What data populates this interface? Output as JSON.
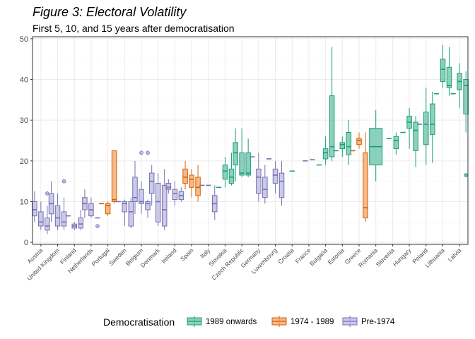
{
  "chart_data": {
    "type": "boxplot",
    "title": "Figure 3: Electoral Volatility",
    "subtitle": "First 5, 10, and 15 years after democratisation",
    "xlabel": "",
    "ylabel": "",
    "ylim": [
      -0.5,
      50.5
    ],
    "yticks": [
      0,
      10,
      20,
      30,
      40,
      50
    ],
    "grid": true,
    "legend": {
      "title": "Democratisation",
      "position": "bottom",
      "entries": [
        {
          "label": "1989 onwards",
          "fill": "#66c2a5",
          "stroke": "#1b9e77"
        },
        {
          "label": "1974 - 1989",
          "fill": "#f4a261",
          "stroke": "#d95f02"
        },
        {
          "label": "Pre-1974",
          "fill": "#bcb8e0",
          "stroke": "#7570b3"
        }
      ]
    },
    "categories": [
      "Austria",
      "United Kingdom",
      "Finland",
      "Netherlands",
      "Portugal",
      "Sweden",
      "Belgium",
      "Denmark",
      "Ireland",
      "Spain",
      "Italy",
      "Slovakia",
      "Czech Republic",
      "Germany",
      "Luxembourg",
      "Croatia",
      "France",
      "Bulgaria",
      "Estonia",
      "Greece",
      "Romania",
      "Slovenia",
      "Hungary",
      "Poland",
      "Lithuania",
      "Latvia"
    ],
    "series": [
      {
        "category": "Austria",
        "group": "Pre-1974",
        "boxes": [
          {
            "min": 5,
            "q1": 6.5,
            "median": 8,
            "q3": 10,
            "max": 12.5,
            "outliers": []
          },
          {
            "min": 3,
            "q1": 4,
            "median": 5,
            "q3": 7.5,
            "max": 10,
            "outliers": []
          },
          {
            "min": 2,
            "q1": 3,
            "median": 4,
            "q3": 6,
            "max": 9,
            "outliers": [
              12
            ]
          }
        ]
      },
      {
        "category": "United Kingdom",
        "group": "Pre-1974",
        "boxes": [
          {
            "min": 5,
            "q1": 7,
            "median": 9.5,
            "q3": 12,
            "max": 15,
            "outliers": []
          },
          {
            "min": 3,
            "q1": 4,
            "median": 6,
            "q3": 9,
            "max": 12,
            "outliers": []
          },
          {
            "min": 3,
            "q1": 4,
            "median": 5,
            "q3": 7.5,
            "max": 11,
            "outliers": [
              15
            ]
          }
        ]
      },
      {
        "category": "Finland",
        "group": "Pre-1974",
        "boxes": [
          {
            "min": 6.5,
            "q1": 6.5,
            "median": 6.5,
            "q3": 6.5,
            "max": 6.5,
            "outliers": []
          },
          {
            "min": 3,
            "q1": 3.5,
            "median": 4,
            "q3": 4.5,
            "max": 5,
            "outliers": []
          },
          {
            "min": 3,
            "q1": 3.5,
            "median": 4.5,
            "q3": 6,
            "max": 8,
            "outliers": []
          }
        ]
      },
      {
        "category": "Netherlands",
        "group": "Pre-1974",
        "boxes": [
          {
            "min": 6,
            "q1": 8,
            "median": 9.5,
            "q3": 11,
            "max": 13,
            "outliers": []
          },
          {
            "min": 6,
            "q1": 6.5,
            "median": 8,
            "q3": 9.5,
            "max": 11,
            "outliers": []
          },
          {
            "min": 6,
            "q1": 6,
            "median": 6,
            "q3": 6,
            "max": 6,
            "outliers": [
              4
            ]
          }
        ]
      },
      {
        "category": "Portugal",
        "group": "1974 - 1989",
        "boxes": [
          {
            "min": 9.5,
            "q1": 9.5,
            "median": 9.5,
            "q3": 9.5,
            "max": 9.5,
            "outliers": []
          },
          {
            "min": 6.5,
            "q1": 7,
            "median": 9,
            "q3": 9.5,
            "max": 10,
            "outliers": []
          },
          {
            "min": 9.5,
            "q1": 10,
            "median": 10.5,
            "q3": 22.5,
            "max": 22.5,
            "outliers": []
          }
        ]
      },
      {
        "category": "Sweden",
        "group": "Pre-1974",
        "boxes": [
          {
            "min": 10,
            "q1": 10,
            "median": 10,
            "q3": 10,
            "max": 10,
            "outliers": []
          },
          {
            "min": 4,
            "q1": 7.5,
            "median": 9.5,
            "q3": 10,
            "max": 10.5,
            "outliers": []
          },
          {
            "min": 3.5,
            "q1": 4,
            "median": 7.5,
            "q3": 10,
            "max": 11,
            "outliers": []
          }
        ]
      },
      {
        "category": "Belgium",
        "group": "Pre-1974",
        "boxes": [
          {
            "min": 7,
            "q1": 10,
            "median": 11,
            "q3": 16,
            "max": 20,
            "outliers": []
          },
          {
            "min": 7,
            "q1": 9.5,
            "median": 10,
            "q3": 13,
            "max": 15,
            "outliers": [
              22
            ]
          },
          {
            "min": 6,
            "q1": 8,
            "median": 9.5,
            "q3": 10,
            "max": 10.5,
            "outliers": [
              22
            ]
          }
        ]
      },
      {
        "category": "Denmark",
        "group": "Pre-1974",
        "boxes": [
          {
            "min": 9,
            "q1": 12,
            "median": 15,
            "q3": 17,
            "max": 19,
            "outliers": []
          },
          {
            "min": 4,
            "q1": 5,
            "median": 10,
            "q3": 14.5,
            "max": 17,
            "outliers": []
          },
          {
            "min": 3,
            "q1": 4,
            "median": 8,
            "q3": 14,
            "max": 18,
            "outliers": []
          }
        ]
      },
      {
        "category": "Ireland",
        "group": "Pre-1974",
        "boxes": [
          {
            "min": 12,
            "q1": 13,
            "median": 13.5,
            "q3": 14.5,
            "max": 15.5,
            "outliers": []
          },
          {
            "min": 9,
            "q1": 10.5,
            "median": 12,
            "q3": 13,
            "max": 15,
            "outliers": []
          },
          {
            "min": 10,
            "q1": 10.5,
            "median": 11.5,
            "q3": 12.5,
            "max": 13.5,
            "outliers": []
          }
        ]
      },
      {
        "category": "Spain",
        "group": "1974 - 1989",
        "boxes": [
          {
            "min": 13,
            "q1": 14.5,
            "median": 16,
            "q3": 18,
            "max": 20,
            "outliers": []
          },
          {
            "min": 11,
            "q1": 13.5,
            "median": 15.5,
            "q3": 16.5,
            "max": 18,
            "outliers": []
          },
          {
            "min": 10,
            "q1": 11.5,
            "median": 13.5,
            "q3": 16,
            "max": 19,
            "outliers": []
          }
        ]
      },
      {
        "category": "Italy",
        "group": "Pre-1974",
        "boxes": [
          {
            "min": 14,
            "q1": 14,
            "median": 14,
            "q3": 14,
            "max": 14,
            "outliers": []
          },
          {
            "min": 14,
            "q1": 14,
            "median": 14,
            "q3": 14,
            "max": 14,
            "outliers": []
          },
          {
            "min": 5.5,
            "q1": 7.5,
            "median": 9.5,
            "q3": 11.5,
            "max": 14,
            "outliers": []
          }
        ]
      },
      {
        "category": "Slovakia",
        "group": "1989 onwards",
        "boxes": [
          {
            "min": 13.5,
            "q1": 13.5,
            "median": 13.5,
            "q3": 13.5,
            "max": 13.5,
            "outliers": []
          },
          {
            "min": 13.5,
            "q1": 15.5,
            "median": 17.5,
            "q3": 19,
            "max": 21,
            "outliers": []
          },
          {
            "min": 14,
            "q1": 14.5,
            "median": 16,
            "q3": 18,
            "max": 22,
            "outliers": []
          }
        ]
      },
      {
        "category": "Czech Republic",
        "group": "1989 onwards",
        "boxes": [
          {
            "min": 15,
            "q1": 19,
            "median": 22,
            "q3": 24.5,
            "max": 28,
            "outliers": []
          },
          {
            "min": 16,
            "q1": 16.5,
            "median": 17,
            "q3": 22,
            "max": 28,
            "outliers": []
          },
          {
            "min": 16,
            "q1": 16.5,
            "median": 17,
            "q3": 22,
            "max": 25.5,
            "outliers": []
          }
        ]
      },
      {
        "category": "Germany",
        "group": "Pre-1974",
        "boxes": [
          {
            "min": 21,
            "q1": 21,
            "median": 21,
            "q3": 21,
            "max": 21,
            "outliers": []
          },
          {
            "min": 10,
            "q1": 12,
            "median": 16,
            "q3": 18,
            "max": 22,
            "outliers": []
          },
          {
            "min": 9.5,
            "q1": 11,
            "median": 13,
            "q3": 16,
            "max": 19,
            "outliers": []
          }
        ]
      },
      {
        "category": "Luxembourg",
        "group": "Pre-1974",
        "boxes": [
          {
            "min": 20.5,
            "q1": 20.5,
            "median": 20.5,
            "q3": 20.5,
            "max": 20.5,
            "outliers": []
          },
          {
            "min": 12,
            "q1": 14.5,
            "median": 16.5,
            "q3": 18,
            "max": 20,
            "outliers": []
          },
          {
            "min": 9,
            "q1": 11,
            "median": 15,
            "q3": 17,
            "max": 20,
            "outliers": []
          }
        ]
      },
      {
        "category": "Croatia",
        "group": "1989 onwards",
        "boxes": [
          {
            "min": 17.5,
            "q1": 17.5,
            "median": 17.5,
            "q3": 17.5,
            "max": 17.5,
            "outliers": []
          }
        ]
      },
      {
        "category": "France",
        "group": "Pre-1974",
        "boxes": [
          {
            "min": 20,
            "q1": 20,
            "median": 20,
            "q3": 20,
            "max": 20,
            "outliers": []
          },
          {
            "min": 20.3,
            "q1": 20.3,
            "median": 20.3,
            "q3": 20.3,
            "max": 20.3,
            "outliers": []
          }
        ]
      },
      {
        "category": "Bulgaria",
        "group": "1989 onwards",
        "boxes": [
          {
            "min": 19,
            "q1": 19,
            "median": 19,
            "q3": 19,
            "max": 19,
            "outliers": []
          },
          {
            "min": 19,
            "q1": 20.5,
            "median": 22,
            "q3": 23,
            "max": 26,
            "outliers": []
          },
          {
            "min": 20,
            "q1": 21,
            "median": 23.5,
            "q3": 36,
            "max": 48,
            "outliers": []
          }
        ]
      },
      {
        "category": "Estonia",
        "group": "1989 onwards",
        "boxes": [
          {
            "min": 22.5,
            "q1": 22.5,
            "median": 22.5,
            "q3": 22.5,
            "max": 22.5,
            "outliers": []
          },
          {
            "min": 21,
            "q1": 23,
            "median": 24,
            "q3": 24.5,
            "max": 26,
            "outliers": []
          },
          {
            "min": 19,
            "q1": 21.5,
            "median": 23.5,
            "q3": 27,
            "max": 30,
            "outliers": []
          }
        ]
      },
      {
        "category": "Greece",
        "group": "1974 - 1989",
        "boxes": [
          {
            "min": 22.5,
            "q1": 22.5,
            "median": 22.5,
            "q3": 22.5,
            "max": 22.5,
            "outliers": []
          },
          {
            "min": 23,
            "q1": 24,
            "median": 25,
            "q3": 25.5,
            "max": 27,
            "outliers": []
          },
          {
            "min": 5,
            "q1": 6,
            "median": 8.5,
            "q3": 22,
            "max": 27,
            "outliers": []
          }
        ]
      },
      {
        "category": "Romania",
        "group": "1989 onwards",
        "boxes": [
          {
            "min": 15,
            "q1": 19,
            "median": 23.5,
            "q3": 28,
            "max": 32.5,
            "outliers": []
          }
        ]
      },
      {
        "category": "Slovenia",
        "group": "1989 onwards",
        "boxes": [
          {
            "min": 25.5,
            "q1": 25.5,
            "median": 25.5,
            "q3": 25.5,
            "max": 25.5,
            "outliers": []
          },
          {
            "min": 21.5,
            "q1": 23,
            "median": 25,
            "q3": 26,
            "max": 27,
            "outliers": []
          }
        ]
      },
      {
        "category": "Hungary",
        "group": "1989 onwards",
        "boxes": [
          {
            "min": 27,
            "q1": 27,
            "median": 27,
            "q3": 27,
            "max": 27,
            "outliers": []
          },
          {
            "min": 23,
            "q1": 28,
            "median": 29.5,
            "q3": 31,
            "max": 33,
            "outliers": []
          },
          {
            "min": 18.5,
            "q1": 22.5,
            "median": 27.5,
            "q3": 29.5,
            "max": 31,
            "outliers": []
          }
        ]
      },
      {
        "category": "Poland",
        "group": "1989 onwards",
        "boxes": [
          {
            "min": 29,
            "q1": 29,
            "median": 29,
            "q3": 29,
            "max": 29,
            "outliers": []
          },
          {
            "min": 19,
            "q1": 24,
            "median": 29,
            "q3": 32,
            "max": 38,
            "outliers": []
          },
          {
            "min": 19.5,
            "q1": 26.5,
            "median": 29,
            "q3": 34,
            "max": 37,
            "outliers": []
          }
        ]
      },
      {
        "category": "Lithuania",
        "group": "1989 onwards",
        "boxes": [
          {
            "min": 36.5,
            "q1": 36.5,
            "median": 36.5,
            "q3": 36.5,
            "max": 36.5,
            "outliers": []
          },
          {
            "min": 38,
            "q1": 39.5,
            "median": 42.5,
            "q3": 45,
            "max": 48.5,
            "outliers": []
          },
          {
            "min": 36,
            "q1": 38,
            "median": 38.5,
            "q3": 43,
            "max": 48,
            "outliers": []
          }
        ]
      },
      {
        "category": "Latvia",
        "group": "1989 onwards",
        "boxes": [
          {
            "min": 36.5,
            "q1": 36.5,
            "median": 36.5,
            "q3": 36.5,
            "max": 36.5,
            "outliers": []
          },
          {
            "min": 33,
            "q1": 37.5,
            "median": 39.5,
            "q3": 41.5,
            "max": 44,
            "outliers": []
          },
          {
            "min": 27,
            "q1": 31.5,
            "median": 38.5,
            "q3": 40,
            "max": 42,
            "outliers": [
              16.5
            ]
          }
        ]
      }
    ]
  }
}
